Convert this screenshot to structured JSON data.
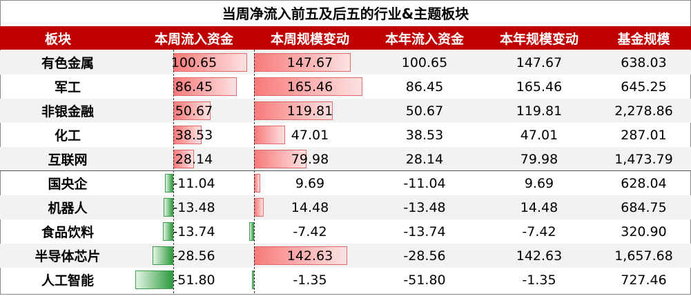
{
  "title": "当周净流入前五及后五的行业&主题板块",
  "header": [
    "板块",
    "本周流入资金",
    "本周规模变动",
    "本年流入资金",
    "本年规模变动",
    "基金规模"
  ],
  "rows": [
    {
      "name": "有色金属",
      "week_flow": "100.65",
      "week_scale": "147.67",
      "year_flow": "100.65",
      "year_scale": "147.67",
      "fund": "638.03",
      "wf": 100.65,
      "ws": 147.67
    },
    {
      "name": "军工",
      "week_flow": "86.45",
      "week_scale": "165.46",
      "year_flow": "86.45",
      "year_scale": "165.46",
      "fund": "645.25",
      "wf": 86.45,
      "ws": 165.46
    },
    {
      "name": "非银金融",
      "week_flow": "50.67",
      "week_scale": "119.81",
      "year_flow": "50.67",
      "year_scale": "119.81",
      "fund": "2,278.86",
      "wf": 50.67,
      "ws": 119.81
    },
    {
      "name": "化工",
      "week_flow": "38.53",
      "week_scale": "47.01",
      "year_flow": "38.53",
      "year_scale": "47.01",
      "fund": "287.01",
      "wf": 38.53,
      "ws": 47.01
    },
    {
      "name": "互联网",
      "week_flow": "28.14",
      "week_scale": "79.98",
      "year_flow": "28.14",
      "year_scale": "79.98",
      "fund": "1,473.79",
      "wf": 28.14,
      "ws": 79.98
    },
    {
      "name": "国央企",
      "week_flow": "-11.04",
      "week_scale": "9.69",
      "year_flow": "-11.04",
      "year_scale": "9.69",
      "fund": "628.04",
      "wf": -11.04,
      "ws": 9.69
    },
    {
      "name": "机器人",
      "week_flow": "-13.48",
      "week_scale": "14.48",
      "year_flow": "-13.48",
      "year_scale": "14.48",
      "fund": "684.75",
      "wf": -13.48,
      "ws": 14.48
    },
    {
      "name": "食品饮料",
      "week_flow": "-13.74",
      "week_scale": "-7.42",
      "year_flow": "-13.74",
      "year_scale": "-7.42",
      "fund": "320.90",
      "wf": -13.74,
      "ws": -7.42
    },
    {
      "name": "半导体芯片",
      "week_flow": "-28.56",
      "week_scale": "142.63",
      "year_flow": "-28.56",
      "year_scale": "142.63",
      "fund": "1,657.68",
      "wf": -28.56,
      "ws": 142.63
    },
    {
      "name": "人工智能",
      "week_flow": "-51.80",
      "week_scale": "-1.35",
      "year_flow": "-51.80",
      "year_scale": "-1.35",
      "fund": "727.46",
      "wf": -51.8,
      "ws": -1.35
    }
  ],
  "colors": {
    "header_bg": "#c00000",
    "positive_bar": "#f87a7a",
    "negative_bar": "#2e9a3f",
    "alt_row": "#f2f2f2"
  }
}
